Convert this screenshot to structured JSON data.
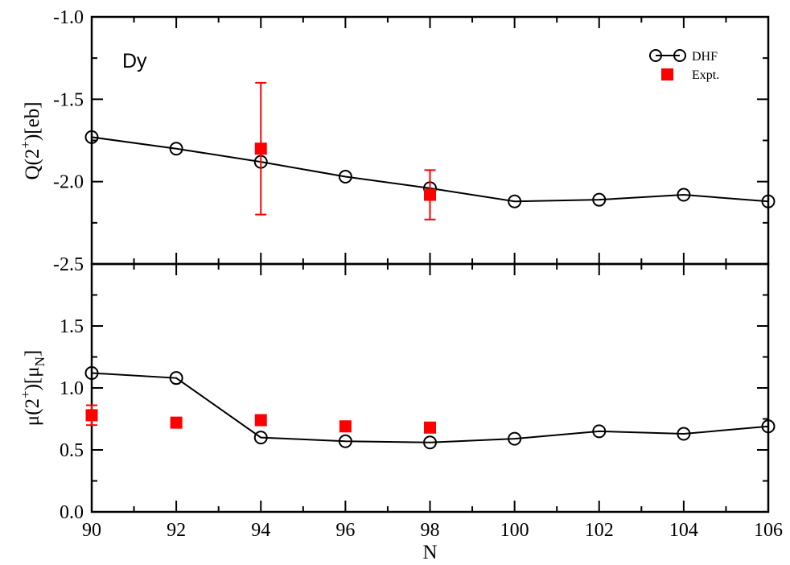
{
  "chart_data": [
    {
      "type": "line",
      "panel_label": "Dy",
      "ylabel_main": "Q(2",
      "ylabel_sup": "+",
      "ylabel_tail": ")[eb]",
      "ylim": [
        -2.5,
        -1.0
      ],
      "yticks": [
        "-1.0",
        "-1.5",
        "-2.0",
        "-2.5"
      ],
      "ytick_values": [
        -1.0,
        -1.5,
        -2.0,
        -2.5
      ],
      "legend": {
        "position": "top-right",
        "entries": [
          "DHF",
          "Expt."
        ]
      },
      "series": [
        {
          "name": "DHF",
          "x": [
            90,
            92,
            94,
            96,
            98,
            100,
            102,
            104,
            106
          ],
          "y": [
            -1.73,
            -1.8,
            -1.88,
            -1.97,
            -2.04,
            -2.12,
            -2.11,
            -2.08,
            -2.12
          ],
          "color": "#000000"
        },
        {
          "name": "Expt.",
          "x": [
            94,
            98
          ],
          "y": [
            -1.8,
            -2.08
          ],
          "err": [
            0.4,
            0.15
          ],
          "color": "#ff0000"
        }
      ]
    },
    {
      "type": "line",
      "ylabel_main": "μ(2",
      "ylabel_sup": "+",
      "ylabel_mid": ")[μ",
      "ylabel_sub": "N",
      "ylabel_tail": "]",
      "ylim": [
        0.0,
        2.0
      ],
      "yticks": [
        "0.0",
        "0.5",
        "1.0",
        "1.5"
      ],
      "ytick_values": [
        0.0,
        0.5,
        1.0,
        1.5
      ],
      "xlabel": "N",
      "xlim": [
        90,
        106
      ],
      "xticks": [
        "90",
        "92",
        "94",
        "96",
        "98",
        "100",
        "102",
        "104",
        "106"
      ],
      "series": [
        {
          "name": "DHF",
          "x": [
            90,
            92,
            94,
            96,
            98,
            100,
            102,
            104,
            106
          ],
          "y": [
            1.12,
            1.08,
            0.6,
            0.57,
            0.56,
            0.59,
            0.65,
            0.63,
            0.69
          ],
          "color": "#000000"
        },
        {
          "name": "Expt.",
          "x": [
            90,
            92,
            94,
            96,
            98
          ],
          "y": [
            0.78,
            0.72,
            0.74,
            0.69,
            0.68
          ],
          "err": [
            0.08,
            0,
            0,
            0,
            0
          ],
          "color": "#ff0000"
        }
      ]
    }
  ]
}
